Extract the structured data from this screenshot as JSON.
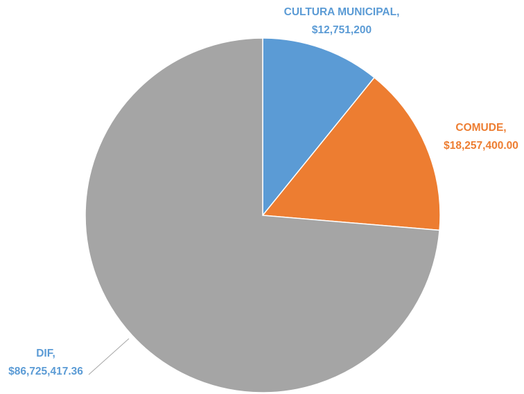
{
  "chart_data": {
    "type": "pie",
    "title": "",
    "categories": [
      "CULTURA MUNICIPAL",
      "COMUDE",
      "DIF"
    ],
    "values": [
      12751200,
      18257400.0,
      86725417.36
    ],
    "value_labels": [
      "$12,751,200",
      "$18,257,400.00",
      "$86,725,417.36"
    ],
    "colors": [
      "#5B9BD5",
      "#ED7D31",
      "#A5A5A5"
    ],
    "label_colors": [
      "#5B9BD5",
      "#ED7D31",
      "#5B9BD5"
    ],
    "start_angle": "12 o'clock",
    "direction": "clockwise",
    "legend": "none"
  }
}
